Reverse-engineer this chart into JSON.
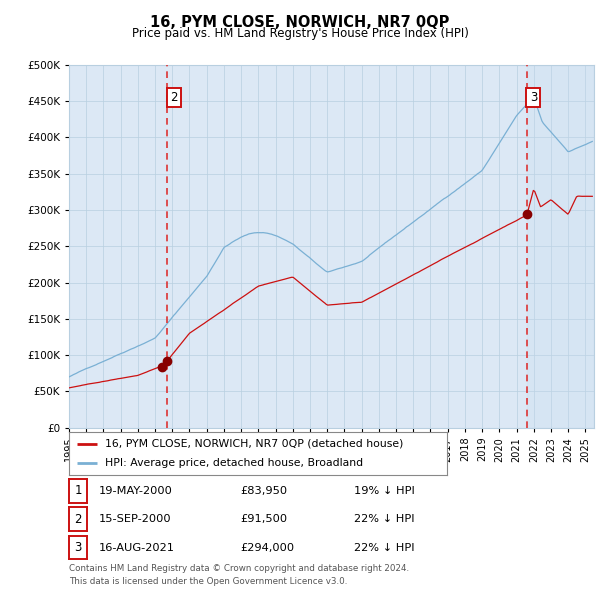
{
  "title": "16, PYM CLOSE, NORWICH, NR7 0QP",
  "subtitle": "Price paid vs. HM Land Registry's House Price Index (HPI)",
  "background_color": "#ffffff",
  "plot_bg_color": "#dce8f5",
  "grid_color": "#b8cfe0",
  "year_start": 1995.0,
  "year_end": 2025.5,
  "ylim": [
    0,
    500000
  ],
  "yticks": [
    0,
    50000,
    100000,
    150000,
    200000,
    250000,
    300000,
    350000,
    400000,
    450000,
    500000
  ],
  "hpi_color": "#7ab0d4",
  "price_color": "#cc1111",
  "sale_marker_color": "#880000",
  "vline_color": "#dd3333",
  "annotation_box_color": "#cc1111",
  "transaction1": {
    "date_num": 2000.38,
    "price": 83950,
    "label": "1"
  },
  "transaction2": {
    "date_num": 2000.71,
    "price": 91500,
    "label": "2"
  },
  "transaction3": {
    "date_num": 2021.62,
    "price": 294000,
    "label": "3"
  },
  "table_rows": [
    {
      "num": "1",
      "date": "19-MAY-2000",
      "price": "£83,950",
      "hpi": "19% ↓ HPI"
    },
    {
      "num": "2",
      "date": "15-SEP-2000",
      "price": "£91,500",
      "hpi": "22% ↓ HPI"
    },
    {
      "num": "3",
      "date": "16-AUG-2021",
      "price": "£294,000",
      "hpi": "22% ↓ HPI"
    }
  ],
  "legend_label_red": "16, PYM CLOSE, NORWICH, NR7 0QP (detached house)",
  "legend_label_blue": "HPI: Average price, detached house, Broadland",
  "footer_text": "Contains HM Land Registry data © Crown copyright and database right 2024.\nThis data is licensed under the Open Government Licence v3.0."
}
